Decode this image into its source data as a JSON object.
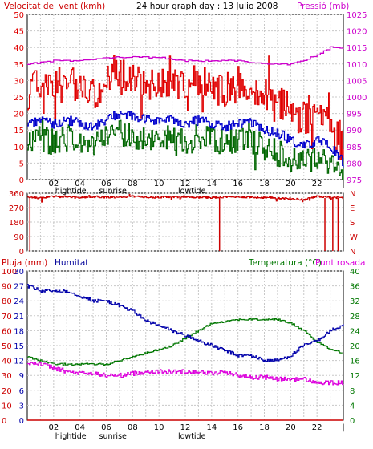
{
  "header": {
    "left_label": "Velocitat del vent (kmh)",
    "center_title": "24 hour graph day : 13 Julio 2008",
    "right_label": "Pressió (mb)"
  },
  "colors": {
    "gust": "#e00000",
    "avg_wind": "#0000cc",
    "min_wind": "#006600",
    "pressure": "#cc00cc",
    "direction": "#cc0000",
    "humidity": "#0000aa",
    "temperature": "#007700",
    "dewpoint": "#dd00dd",
    "rain": "#cc0000"
  },
  "time_axis": {
    "hour_labels": [
      "02",
      "04",
      "06",
      "08",
      "10",
      "12",
      "14",
      "16",
      "18",
      "20",
      "22"
    ],
    "top_markers": [
      "hightide",
      "sunrise",
      "lowtide"
    ],
    "bottom_markers": [
      "hightide",
      "sunrise",
      "lowtide"
    ]
  },
  "panel_labels": {
    "rain": "Pluja (mm)",
    "humidity": "Humitat",
    "temperature": "Temperatura (°C)",
    "dewpoint": "Punt rosada"
  },
  "chart_data": [
    {
      "type": "line",
      "title": "24 hour graph day : 13 Julio 2008",
      "x_unit": "hours",
      "x_range": [
        0,
        24
      ],
      "y_left": {
        "label": "Velocitat del vent (kmh)",
        "range": [
          0,
          50
        ],
        "ticks": [
          0,
          5,
          10,
          15,
          20,
          25,
          30,
          35,
          40,
          45,
          50
        ]
      },
      "y_right": {
        "label": "Pressió (mb)",
        "range": [
          975,
          1025
        ],
        "ticks": [
          975,
          980,
          985,
          990,
          995,
          1000,
          1005,
          1010,
          1015,
          1020,
          1025
        ]
      },
      "series": [
        {
          "name": "gust",
          "axis": "left",
          "x": [
            0,
            1,
            2,
            3,
            4,
            5,
            6,
            7,
            8,
            9,
            10,
            11,
            12,
            13,
            14,
            15,
            16,
            17,
            18,
            19,
            20,
            21,
            22,
            23,
            24
          ],
          "y": [
            26,
            30,
            28,
            31,
            27,
            26,
            30,
            33,
            30,
            28,
            29,
            30,
            29,
            30,
            28,
            27,
            30,
            28,
            26,
            24,
            21,
            18,
            22,
            17,
            9
          ]
        },
        {
          "name": "avg",
          "axis": "left",
          "x": [
            0,
            1,
            2,
            3,
            4,
            5,
            6,
            7,
            8,
            9,
            10,
            11,
            12,
            13,
            14,
            15,
            16,
            17,
            18,
            19,
            20,
            21,
            22,
            23,
            24
          ],
          "y": [
            17,
            18,
            17,
            18,
            17,
            16,
            18,
            20,
            19,
            18,
            18,
            18,
            17,
            18,
            17,
            16,
            17,
            17,
            15,
            14,
            12,
            10,
            12,
            10,
            5
          ]
        },
        {
          "name": "min",
          "axis": "left",
          "x": [
            0,
            1,
            2,
            3,
            4,
            5,
            6,
            7,
            8,
            9,
            10,
            11,
            12,
            13,
            14,
            15,
            16,
            17,
            18,
            19,
            20,
            21,
            22,
            23,
            24
          ],
          "y": [
            12,
            13,
            11,
            13,
            11,
            10,
            12,
            14,
            13,
            12,
            12,
            13,
            11,
            13,
            12,
            11,
            12,
            11,
            10,
            8,
            6,
            5,
            7,
            4,
            2
          ]
        },
        {
          "name": "pressure",
          "axis": "right",
          "x": [
            0,
            2,
            4,
            6,
            8,
            10,
            12,
            14,
            16,
            18,
            19,
            20,
            21,
            22,
            23,
            24
          ],
          "y": [
            1010,
            1011,
            1011,
            1012,
            1012,
            1012,
            1011,
            1011,
            1011,
            1010,
            1010,
            1010,
            1011,
            1013,
            1015,
            1015
          ]
        }
      ]
    },
    {
      "type": "line",
      "x_unit": "hours",
      "x_range": [
        0,
        24
      ],
      "y_left": {
        "range": [
          0,
          360
        ],
        "ticks": [
          0,
          90,
          180,
          270,
          360
        ]
      },
      "y_right": {
        "ticks": [
          "N",
          "E",
          "S",
          "W",
          "N"
        ]
      },
      "series": [
        {
          "name": "wind direction",
          "x": [
            0,
            1,
            2,
            3,
            4,
            5,
            6,
            7,
            8,
            9,
            10,
            11,
            12,
            13,
            14,
            15,
            16,
            17,
            18,
            19,
            20,
            21,
            22,
            23,
            24
          ],
          "y": [
            335,
            330,
            340,
            335,
            332,
            338,
            336,
            335,
            340,
            336,
            334,
            338,
            336,
            335,
            333,
            336,
            338,
            335,
            332,
            330,
            325,
            320,
            340,
            335,
            330
          ]
        }
      ]
    },
    {
      "type": "line",
      "x_unit": "hours",
      "x_range": [
        0,
        24
      ],
      "y_left_rain": {
        "label": "Pluja (mm)",
        "range": [
          0,
          100
        ],
        "ticks": [
          0,
          10,
          20,
          30,
          40,
          50,
          60,
          70,
          80,
          90,
          100
        ]
      },
      "y_left_humidity": {
        "label": "Humitat",
        "range": [
          0,
          30
        ],
        "ticks": [
          0,
          3,
          6,
          9,
          12,
          15,
          18,
          21,
          24,
          27,
          30
        ]
      },
      "y_right": {
        "label": "Temperatura (°C)",
        "range": [
          0,
          40
        ],
        "ticks": [
          0,
          4,
          8,
          12,
          16,
          20,
          24,
          28,
          32,
          36,
          40
        ]
      },
      "series": [
        {
          "name": "humidity",
          "axis": "humidity",
          "x": [
            0,
            1,
            2,
            3,
            4,
            5,
            6,
            7,
            8,
            9,
            10,
            11,
            12,
            13,
            14,
            15,
            16,
            17,
            18,
            19,
            20,
            21,
            22,
            23,
            24
          ],
          "y": [
            27,
            26,
            26,
            26,
            25,
            24,
            24,
            23,
            22,
            20,
            19,
            18,
            17,
            16,
            15,
            14,
            13,
            13,
            12,
            12,
            13,
            15,
            16,
            18,
            19
          ]
        },
        {
          "name": "temperature",
          "axis": "right",
          "x": [
            0,
            1,
            2,
            3,
            4,
            5,
            6,
            7,
            8,
            9,
            10,
            11,
            12,
            13,
            14,
            15,
            16,
            17,
            18,
            19,
            20,
            21,
            22,
            23,
            24
          ],
          "y": [
            17,
            16,
            15,
            15,
            15,
            15,
            15,
            16,
            17,
            18,
            19,
            20,
            22,
            24,
            26,
            26.5,
            27,
            27,
            27,
            27,
            26,
            24,
            21,
            19,
            18
          ]
        },
        {
          "name": "dewpoint",
          "axis": "right",
          "x": [
            0,
            1,
            2,
            3,
            4,
            5,
            6,
            7,
            8,
            9,
            10,
            11,
            12,
            13,
            14,
            15,
            16,
            17,
            18,
            19,
            20,
            21,
            22,
            23,
            24
          ],
          "y": [
            15.5,
            15,
            14,
            13,
            12.5,
            12.5,
            12,
            12,
            12.5,
            13,
            13,
            13,
            13,
            13,
            12.5,
            13,
            12,
            11.5,
            11.5,
            11,
            11,
            11,
            10,
            10,
            10
          ]
        },
        {
          "name": "rain",
          "axis": "rain",
          "x": [
            0,
            24
          ],
          "y": [
            0,
            0
          ]
        }
      ]
    }
  ]
}
